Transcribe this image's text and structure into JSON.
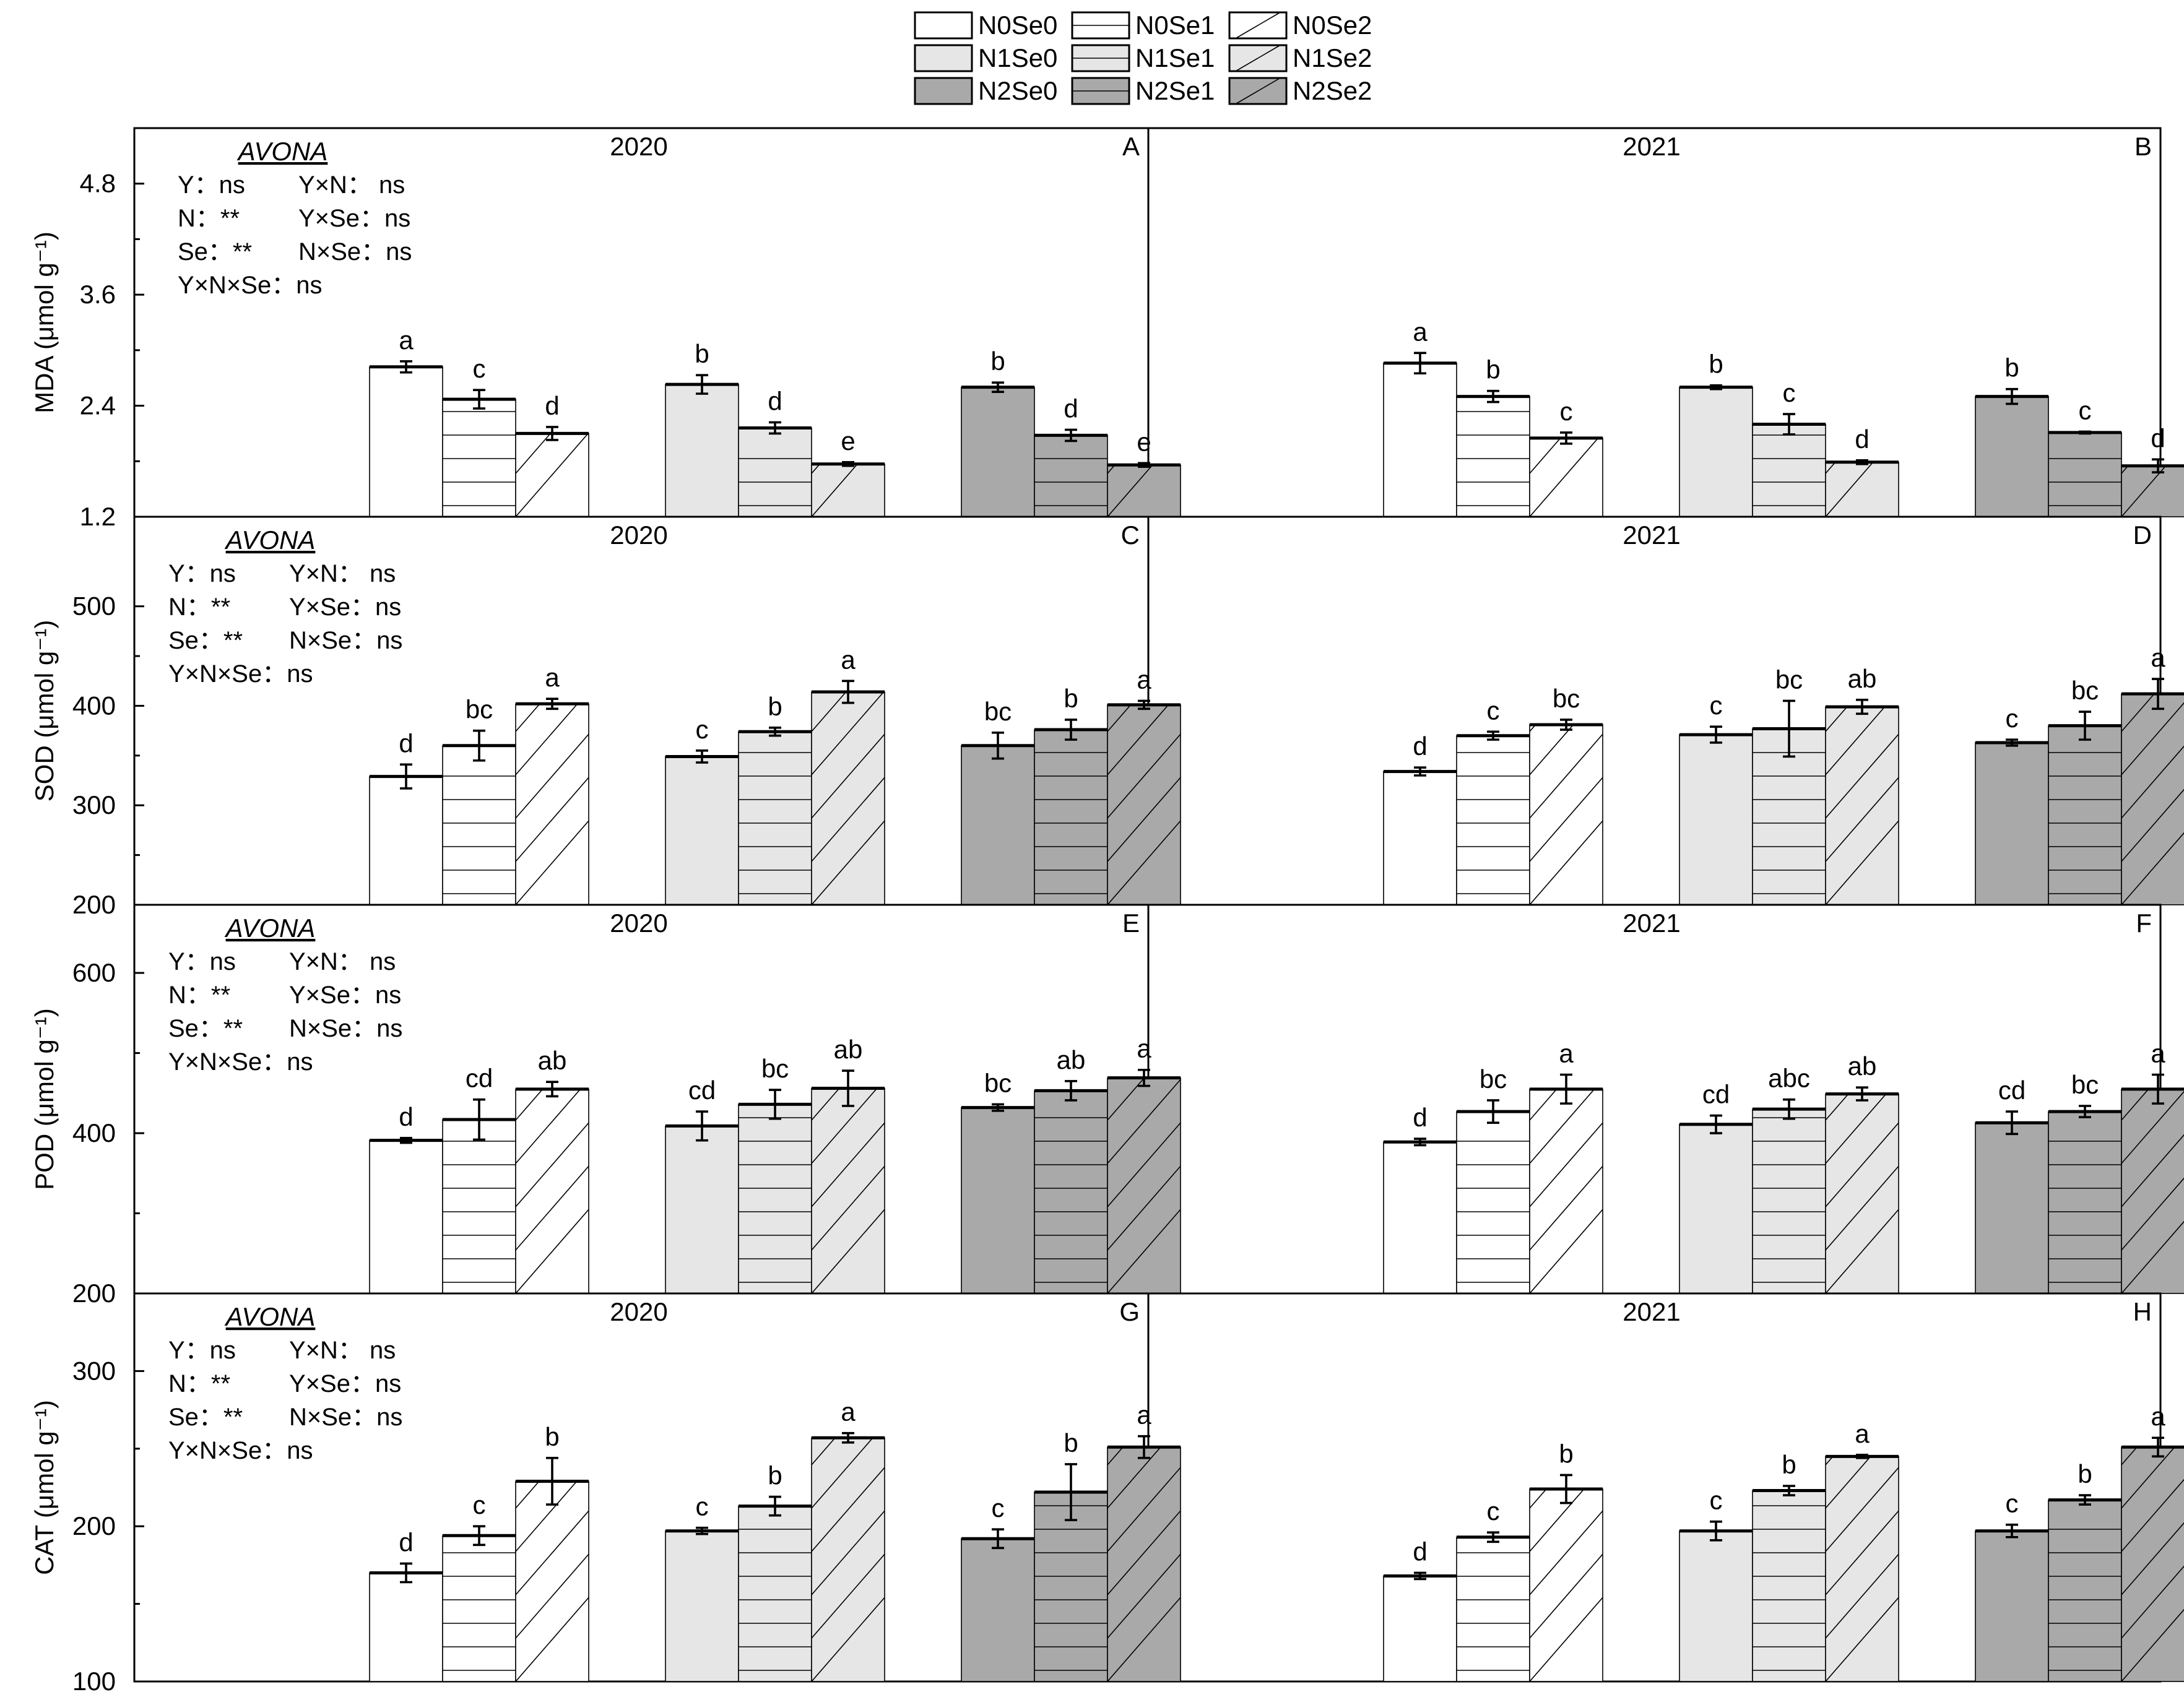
{
  "chart_data": {
    "type": "bar",
    "legend": {
      "placement": "top-center",
      "entries": [
        "N0Se0",
        "N0Se1",
        "N0Se2",
        "N1Se0",
        "N1Se1",
        "N1Se2",
        "N2Se0",
        "N2Se1",
        "N2Se2"
      ]
    },
    "groups": [
      "N0",
      "N1",
      "N2"
    ],
    "series": [
      "Se0",
      "Se1",
      "Se2"
    ],
    "fills": {
      "N0": "#ffffff",
      "N1": "#e6e6e6",
      "N2": "#a9a9a9"
    },
    "patterns": {
      "Se0": "solid",
      "Se1": "horizontal-lines",
      "Se2": "diagonal-lines"
    },
    "stats_rows": [
      [
        "Y：ns",
        "Y×N： ns"
      ],
      [
        "N：**",
        "Y×Se：ns"
      ],
      [
        "Se：**",
        "N×Se：ns"
      ],
      [
        "Y×N×Se：ns"
      ]
    ],
    "rows": [
      {
        "ylabel": "MDA (μmol g⁻¹)",
        "ylim": [
          1.2,
          5.4
        ],
        "yticks": [
          "1.2",
          "2.4",
          "3.6",
          "4.8"
        ],
        "tick_values": [
          1.2,
          2.4,
          3.6,
          4.8
        ],
        "cultivar": "AVONA",
        "panels": [
          {
            "letter": "A",
            "year": "2020",
            "values": [
              [
                2.82,
                2.47,
                2.1
              ],
              [
                2.63,
                2.16,
                1.77
              ],
              [
                2.6,
                2.08,
                1.76
              ]
            ],
            "errors": [
              [
                0.06,
                0.1,
                0.07
              ],
              [
                0.1,
                0.06,
                0.02
              ],
              [
                0.05,
                0.06,
                0.02
              ]
            ],
            "letters": [
              [
                "a",
                "c",
                "d"
              ],
              [
                "b",
                "d",
                "e"
              ],
              [
                "b",
                "d",
                "e"
              ]
            ]
          },
          {
            "letter": "B",
            "year": "2021",
            "values": [
              [
                2.86,
                2.5,
                2.05
              ],
              [
                2.6,
                2.2,
                1.79
              ],
              [
                2.5,
                2.11,
                1.75
              ]
            ],
            "errors": [
              [
                0.11,
                0.06,
                0.06
              ],
              [
                0.02,
                0.11,
                0.02
              ],
              [
                0.08,
                0.01,
                0.07
              ]
            ],
            "letters": [
              [
                "a",
                "b",
                "c"
              ],
              [
                "b",
                "c",
                "d"
              ],
              [
                "b",
                "c",
                "d"
              ]
            ]
          }
        ]
      },
      {
        "ylabel": "SOD (μmol g⁻¹)",
        "ylim": [
          200,
          590
        ],
        "yticks": [
          "200",
          "300",
          "400",
          "500"
        ],
        "tick_values": [
          200,
          300,
          400,
          500
        ],
        "cultivar": "AVONA",
        "panels": [
          {
            "letter": "C",
            "year": "2020",
            "values": [
              [
                329,
                360,
                402
              ],
              [
                349,
                374,
                414
              ],
              [
                360,
                376,
                401
              ]
            ],
            "errors": [
              [
                12,
                15,
                5
              ],
              [
                6,
                4,
                11
              ],
              [
                13,
                10,
                4
              ]
            ],
            "letters": [
              [
                "d",
                "bc",
                "a"
              ],
              [
                "c",
                "b",
                "a"
              ],
              [
                "bc",
                "b",
                "a"
              ]
            ]
          },
          {
            "letter": "D",
            "year": "2021",
            "values": [
              [
                334,
                370,
                381
              ],
              [
                371,
                377,
                399
              ],
              [
                363,
                380,
                412
              ]
            ],
            "errors": [
              [
                4,
                4,
                5
              ],
              [
                8,
                28,
                7
              ],
              [
                3,
                14,
                15
              ]
            ],
            "letters": [
              [
                "d",
                "c",
                "bc"
              ],
              [
                "c",
                "bc",
                "ab"
              ],
              [
                "c",
                "bc",
                "a"
              ]
            ]
          }
        ]
      },
      {
        "ylabel": "POD (μmol g⁻¹)",
        "ylim": [
          200,
          685
        ],
        "yticks": [
          "200",
          "400",
          "600"
        ],
        "tick_values": [
          200,
          400,
          600
        ],
        "cultivar": "AVONA",
        "panels": [
          {
            "letter": "E",
            "year": "2020",
            "values": [
              [
                391,
                417,
                455
              ],
              [
                409,
                436,
                456
              ],
              [
                432,
                453,
                469
              ]
            ],
            "errors": [
              [
                3,
                25,
                9
              ],
              [
                18,
                18,
                22
              ],
              [
                4,
                12,
                10
              ]
            ],
            "letters": [
              [
                "d",
                "cd",
                "ab"
              ],
              [
                "cd",
                "bc",
                "ab"
              ],
              [
                "bc",
                "ab",
                "a"
              ]
            ]
          },
          {
            "letter": "F",
            "year": "2021",
            "values": [
              [
                389,
                427,
                455
              ],
              [
                411,
                430,
                449
              ],
              [
                413,
                427,
                455
              ]
            ],
            "errors": [
              [
                4,
                14,
                18
              ],
              [
                11,
                12,
                8
              ],
              [
                14,
                7,
                18
              ]
            ],
            "letters": [
              [
                "d",
                "bc",
                "a"
              ],
              [
                "cd",
                "abc",
                "ab"
              ],
              [
                "cd",
                "bc",
                "a"
              ]
            ]
          }
        ]
      },
      {
        "ylabel": "CAT (μmol g⁻¹)",
        "ylim": [
          100,
          350
        ],
        "yticks": [
          "100",
          "200",
          "300"
        ],
        "tick_values": [
          100,
          200,
          300
        ],
        "cultivar": "AVONA",
        "panels": [
          {
            "letter": "G",
            "year": "2020",
            "values": [
              [
                170,
                194,
                229
              ],
              [
                197,
                213,
                257
              ],
              [
                192,
                222,
                251
              ]
            ],
            "errors": [
              [
                6,
                6,
                15
              ],
              [
                2,
                6,
                3
              ],
              [
                6,
                18,
                7
              ]
            ],
            "letters": [
              [
                "d",
                "c",
                "b"
              ],
              [
                "c",
                "b",
                "a"
              ],
              [
                "c",
                "b",
                "a"
              ]
            ]
          },
          {
            "letter": "H",
            "year": "2021",
            "values": [
              [
                168,
                193,
                224
              ],
              [
                197,
                223,
                245
              ],
              [
                197,
                217,
                251
              ]
            ],
            "errors": [
              [
                2,
                3,
                9
              ],
              [
                6,
                3,
                1
              ],
              [
                4,
                3,
                6
              ]
            ],
            "letters": [
              [
                "d",
                "c",
                "b"
              ],
              [
                "c",
                "b",
                "a"
              ],
              [
                "c",
                "b",
                "a"
              ]
            ]
          }
        ]
      }
    ]
  }
}
